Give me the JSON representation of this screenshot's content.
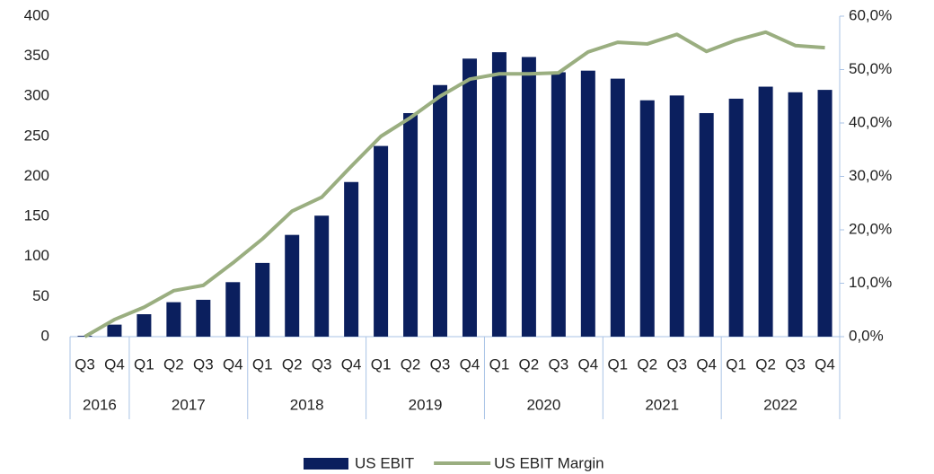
{
  "chart_data": {
    "type": "bar_line",
    "groups": [
      {
        "name": "2016",
        "categories": [
          "Q3",
          "Q4"
        ]
      },
      {
        "name": "2017",
        "categories": [
          "Q1",
          "Q2",
          "Q3",
          "Q4"
        ]
      },
      {
        "name": "2018",
        "categories": [
          "Q1",
          "Q2",
          "Q3",
          "Q4"
        ]
      },
      {
        "name": "2019",
        "categories": [
          "Q1",
          "Q2",
          "Q3",
          "Q4"
        ]
      },
      {
        "name": "2020",
        "categories": [
          "Q1",
          "Q2",
          "Q3",
          "Q4"
        ]
      },
      {
        "name": "2021",
        "categories": [
          "Q1",
          "Q2",
          "Q3",
          "Q4"
        ]
      },
      {
        "name": "2022",
        "categories": [
          "Q1",
          "Q2",
          "Q3",
          "Q4"
        ]
      }
    ],
    "series": [
      {
        "name": "US EBIT",
        "type": "bar",
        "color": "#0b1f5e",
        "values": [
          1,
          15,
          28,
          43,
          46,
          68,
          92,
          127,
          151,
          193,
          238,
          279,
          314,
          347,
          355,
          349,
          330,
          332,
          322,
          295,
          301,
          279,
          297,
          312,
          305,
          308
        ]
      },
      {
        "name": "US EBIT Margin",
        "type": "line",
        "axis": "y2",
        "color": "#9aae80",
        "values": [
          0,
          3.2,
          5.5,
          8.6,
          9.6,
          13.8,
          18.3,
          23.5,
          26.1,
          31.9,
          37.5,
          41.0,
          45.0,
          48.2,
          49.2,
          49.2,
          49.4,
          53.3,
          55.1,
          54.8,
          56.6,
          53.4,
          55.5,
          57.0,
          54.5,
          54.1
        ]
      }
    ],
    "ylim": [
      0,
      400
    ],
    "yticks": [
      0,
      50,
      100,
      150,
      200,
      250,
      300,
      350,
      400
    ],
    "y2lim": [
      0,
      60
    ],
    "y2ticks": [
      {
        "value": 0,
        "label": "0,0%"
      },
      {
        "value": 10,
        "label": "10,0%"
      },
      {
        "value": 20,
        "label": "20,0%"
      },
      {
        "value": 30,
        "label": "30,0%"
      },
      {
        "value": 40,
        "label": "40,0%"
      },
      {
        "value": 50,
        "label": "50,0%"
      },
      {
        "value": 60,
        "label": "60,0%"
      }
    ],
    "legend": "bottom"
  }
}
